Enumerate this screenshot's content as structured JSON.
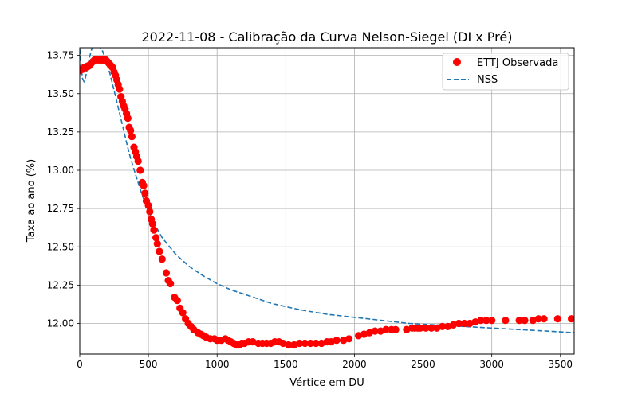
{
  "chart_data": {
    "type": "scatter",
    "title": "2022-11-08 - Calibração da Curva Nelson-Siegel (DI x Pré)",
    "xlabel": "Vértice em DU",
    "ylabel": "Taxa ao ano (%)",
    "xlim": [
      0,
      3600
    ],
    "ylim": [
      11.8,
      13.8
    ],
    "grid": true,
    "legend_position": "top-right",
    "x_ticks": [
      0,
      500,
      1000,
      1500,
      2000,
      2500,
      3000,
      3500
    ],
    "x_tick_labels": [
      "0",
      "500",
      "1000",
      "1500",
      "2000",
      "2500",
      "3000",
      "3500"
    ],
    "y_ticks": [
      12.0,
      12.25,
      12.5,
      12.75,
      13.0,
      13.25,
      13.5,
      13.75
    ],
    "y_tick_labels": [
      "12.00",
      "12.25",
      "12.50",
      "12.75",
      "13.00",
      "13.25",
      "13.50",
      "13.75"
    ],
    "series": [
      {
        "name": "ETTJ Observada",
        "kind": "scatter",
        "color": "#ff0000",
        "points": [
          [
            1,
            13.65
          ],
          [
            12,
            13.66
          ],
          [
            22,
            13.66
          ],
          [
            32,
            13.67
          ],
          [
            42,
            13.67
          ],
          [
            55,
            13.68
          ],
          [
            65,
            13.68
          ],
          [
            75,
            13.69
          ],
          [
            85,
            13.7
          ],
          [
            97,
            13.71
          ],
          [
            108,
            13.72
          ],
          [
            120,
            13.72
          ],
          [
            130,
            13.72
          ],
          [
            140,
            13.72
          ],
          [
            150,
            13.72
          ],
          [
            160,
            13.72
          ],
          [
            170,
            13.72
          ],
          [
            180,
            13.72
          ],
          [
            190,
            13.72
          ],
          [
            200,
            13.71
          ],
          [
            210,
            13.7
          ],
          [
            220,
            13.69
          ],
          [
            230,
            13.68
          ],
          [
            240,
            13.67
          ],
          [
            250,
            13.64
          ],
          [
            260,
            13.62
          ],
          [
            270,
            13.59
          ],
          [
            280,
            13.56
          ],
          [
            290,
            13.53
          ],
          [
            300,
            13.48
          ],
          [
            310,
            13.45
          ],
          [
            320,
            13.42
          ],
          [
            330,
            13.4
          ],
          [
            340,
            13.37
          ],
          [
            350,
            13.34
          ],
          [
            360,
            13.28
          ],
          [
            370,
            13.26
          ],
          [
            380,
            13.22
          ],
          [
            395,
            13.15
          ],
          [
            405,
            13.12
          ],
          [
            415,
            13.09
          ],
          [
            425,
            13.06
          ],
          [
            440,
            13.0
          ],
          [
            455,
            12.92
          ],
          [
            465,
            12.9
          ],
          [
            475,
            12.85
          ],
          [
            485,
            12.8
          ],
          [
            500,
            12.77
          ],
          [
            510,
            12.73
          ],
          [
            520,
            12.68
          ],
          [
            530,
            12.65
          ],
          [
            540,
            12.61
          ],
          [
            555,
            12.56
          ],
          [
            565,
            12.52
          ],
          [
            580,
            12.47
          ],
          [
            600,
            12.42
          ],
          [
            630,
            12.33
          ],
          [
            645,
            12.28
          ],
          [
            660,
            12.26
          ],
          [
            690,
            12.17
          ],
          [
            710,
            12.15
          ],
          [
            730,
            12.1
          ],
          [
            750,
            12.07
          ],
          [
            770,
            12.03
          ],
          [
            790,
            12.0
          ],
          [
            810,
            11.98
          ],
          [
            830,
            11.96
          ],
          [
            860,
            11.94
          ],
          [
            880,
            11.93
          ],
          [
            900,
            11.92
          ],
          [
            920,
            11.91
          ],
          [
            950,
            11.9
          ],
          [
            980,
            11.9
          ],
          [
            1000,
            11.89
          ],
          [
            1030,
            11.89
          ],
          [
            1060,
            11.9
          ],
          [
            1080,
            11.89
          ],
          [
            1100,
            11.88
          ],
          [
            1120,
            11.87
          ],
          [
            1140,
            11.86
          ],
          [
            1160,
            11.86
          ],
          [
            1180,
            11.87
          ],
          [
            1200,
            11.87
          ],
          [
            1230,
            11.88
          ],
          [
            1260,
            11.88
          ],
          [
            1300,
            11.87
          ],
          [
            1330,
            11.87
          ],
          [
            1360,
            11.87
          ],
          [
            1390,
            11.87
          ],
          [
            1420,
            11.88
          ],
          [
            1450,
            11.88
          ],
          [
            1480,
            11.87
          ],
          [
            1520,
            11.86
          ],
          [
            1560,
            11.86
          ],
          [
            1600,
            11.87
          ],
          [
            1640,
            11.87
          ],
          [
            1680,
            11.87
          ],
          [
            1720,
            11.87
          ],
          [
            1760,
            11.87
          ],
          [
            1800,
            11.88
          ],
          [
            1830,
            11.88
          ],
          [
            1870,
            11.89
          ],
          [
            1920,
            11.89
          ],
          [
            1960,
            11.9
          ],
          [
            2030,
            11.92
          ],
          [
            2070,
            11.93
          ],
          [
            2110,
            11.94
          ],
          [
            2150,
            11.95
          ],
          [
            2190,
            11.95
          ],
          [
            2230,
            11.96
          ],
          [
            2270,
            11.96
          ],
          [
            2300,
            11.96
          ],
          [
            2380,
            11.96
          ],
          [
            2420,
            11.97
          ],
          [
            2440,
            11.97
          ],
          [
            2460,
            11.97
          ],
          [
            2480,
            11.97
          ],
          [
            2520,
            11.97
          ],
          [
            2560,
            11.97
          ],
          [
            2600,
            11.97
          ],
          [
            2640,
            11.98
          ],
          [
            2680,
            11.98
          ],
          [
            2720,
            11.99
          ],
          [
            2760,
            12.0
          ],
          [
            2800,
            12.0
          ],
          [
            2840,
            12.0
          ],
          [
            2880,
            12.01
          ],
          [
            2920,
            12.02
          ],
          [
            2960,
            12.02
          ],
          [
            3000,
            12.02
          ],
          [
            3100,
            12.02
          ],
          [
            3200,
            12.02
          ],
          [
            3240,
            12.02
          ],
          [
            3300,
            12.02
          ],
          [
            3340,
            12.03
          ],
          [
            3380,
            12.03
          ],
          [
            3480,
            12.03
          ],
          [
            3580,
            12.03
          ]
        ]
      },
      {
        "name": "NSS",
        "kind": "line",
        "dashed": true,
        "color": "#1f77b4",
        "points": [
          [
            0,
            13.79
          ],
          [
            10,
            13.68
          ],
          [
            20,
            13.6
          ],
          [
            30,
            13.58
          ],
          [
            40,
            13.6
          ],
          [
            50,
            13.64
          ],
          [
            60,
            13.69
          ],
          [
            70,
            13.73
          ],
          [
            80,
            13.77
          ],
          [
            90,
            13.8
          ],
          [
            105,
            13.83
          ],
          [
            120,
            13.84
          ],
          [
            135,
            13.83
          ],
          [
            150,
            13.81
          ],
          [
            170,
            13.77
          ],
          [
            190,
            13.72
          ],
          [
            220,
            13.63
          ],
          [
            250,
            13.52
          ],
          [
            280,
            13.41
          ],
          [
            320,
            13.26
          ],
          [
            360,
            13.11
          ],
          [
            400,
            12.99
          ],
          [
            450,
            12.85
          ],
          [
            500,
            12.73
          ],
          [
            550,
            12.64
          ],
          [
            600,
            12.56
          ],
          [
            700,
            12.45
          ],
          [
            800,
            12.37
          ],
          [
            900,
            12.31
          ],
          [
            1000,
            12.26
          ],
          [
            1100,
            12.22
          ],
          [
            1200,
            12.19
          ],
          [
            1300,
            12.16
          ],
          [
            1400,
            12.13
          ],
          [
            1500,
            12.11
          ],
          [
            1600,
            12.09
          ],
          [
            1800,
            12.06
          ],
          [
            2000,
            12.04
          ],
          [
            2200,
            12.02
          ],
          [
            2400,
            12.0
          ],
          [
            2600,
            11.99
          ],
          [
            2800,
            11.98
          ],
          [
            3000,
            11.97
          ],
          [
            3200,
            11.96
          ],
          [
            3400,
            11.95
          ],
          [
            3600,
            11.94
          ]
        ]
      }
    ]
  }
}
